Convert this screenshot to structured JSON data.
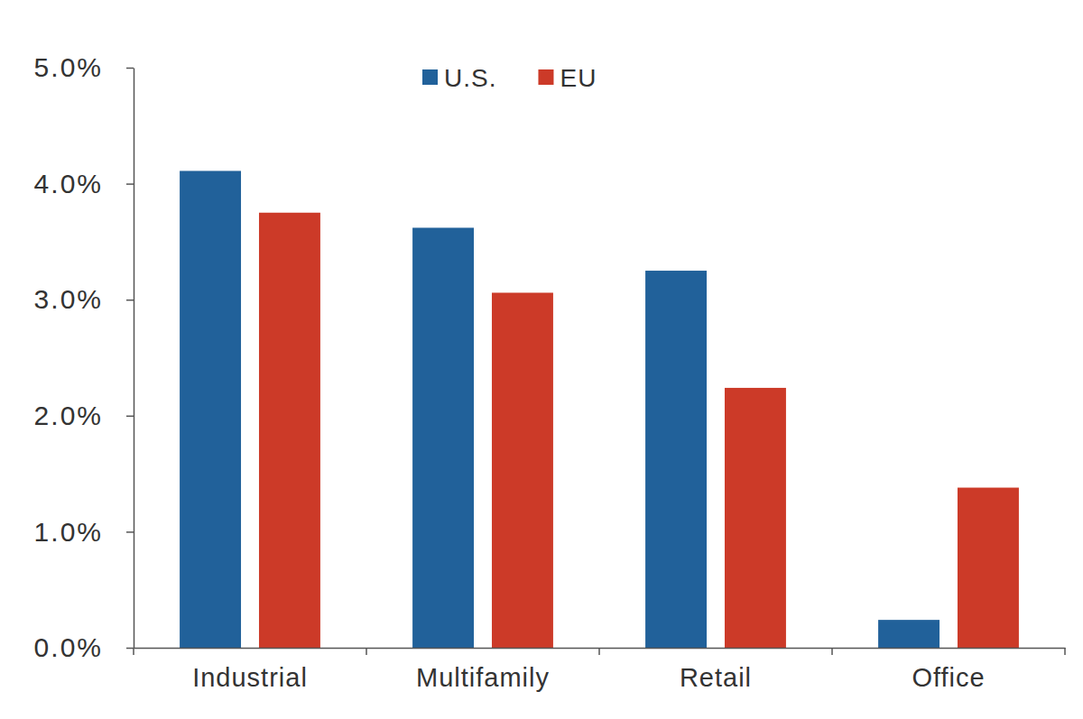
{
  "chart_data": {
    "type": "bar",
    "categories": [
      "Industrial",
      "Multifamily",
      "Retail",
      "Office"
    ],
    "series": [
      {
        "name": "U.S.",
        "color": "#21619a",
        "values": [
          4.11,
          3.62,
          3.25,
          0.24
        ]
      },
      {
        "name": "EU",
        "color": "#cc3a28",
        "values": [
          3.75,
          3.06,
          2.24,
          1.38
        ]
      }
    ],
    "ylim": [
      0,
      5
    ],
    "yticks": [
      {
        "value": 0,
        "label": "0.0%"
      },
      {
        "value": 1,
        "label": "1.0%"
      },
      {
        "value": 2,
        "label": "2.0%"
      },
      {
        "value": 3,
        "label": "3.0%"
      },
      {
        "value": 4,
        "label": "4.0%"
      },
      {
        "value": 5,
        "label": "5.0%"
      }
    ],
    "grid": false,
    "legend": "top"
  }
}
